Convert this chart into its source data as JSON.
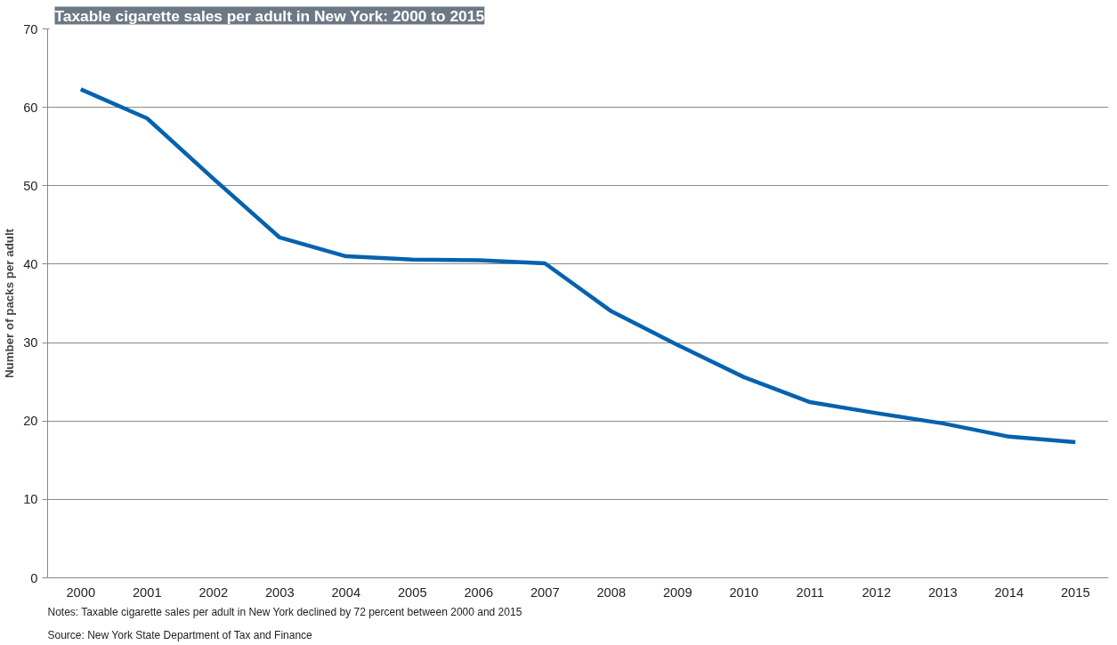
{
  "chart_data": {
    "type": "line",
    "title": "Taxable cigarette sales per adult in New York: 2000 to 2015",
    "ylabel": "Number of packs per adult",
    "categories": [
      "2000",
      "2001",
      "2002",
      "2003",
      "2004",
      "2005",
      "2006",
      "2007",
      "2008",
      "2009",
      "2010",
      "2011",
      "2012",
      "2013",
      "2014",
      "2015"
    ],
    "series": [
      {
        "color": "#0562ae",
        "values": [
          62.3,
          58.6,
          50.9,
          43.4,
          41.0,
          40.6,
          40.5,
          40.1,
          34.0,
          29.7,
          25.6,
          22.4,
          21.0,
          19.7,
          18.0,
          17.3
        ]
      }
    ],
    "ylim": [
      0,
      70
    ],
    "yticks": [
      0,
      10,
      20,
      30,
      40,
      50,
      60,
      70
    ],
    "grid": "y",
    "line_style": "solid",
    "annotations": [
      "Notes: Taxable cigarette sales per adult in New York declined by 72 percent between 2000 and 2015",
      "Source: New York State Department of Tax and Finance"
    ]
  }
}
